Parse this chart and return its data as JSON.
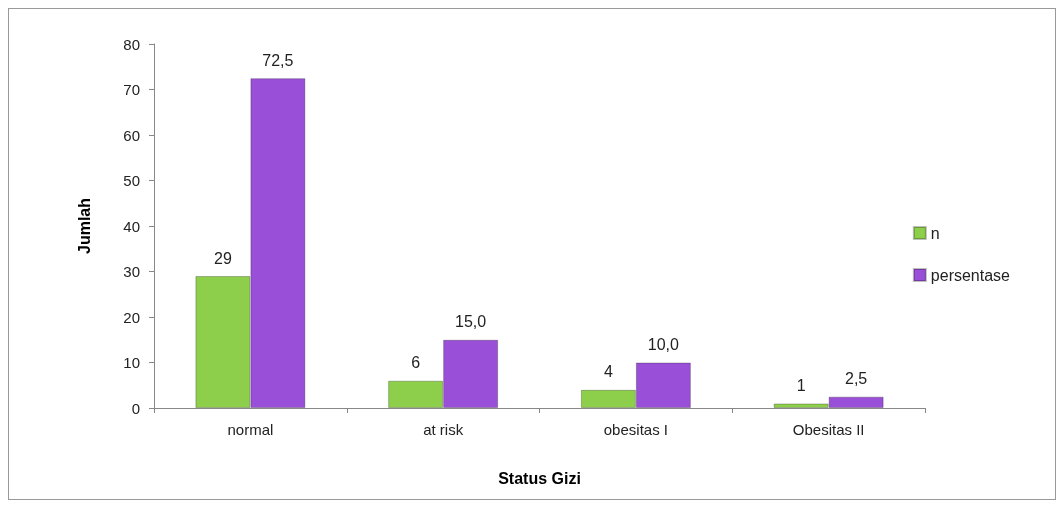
{
  "chart_data": {
    "type": "bar",
    "xlabel": "Status Gizi",
    "ylabel": "Jumlah",
    "categories": [
      "normal",
      "at risk",
      "obesitas I",
      "Obesitas II"
    ],
    "series": [
      {
        "name": "n",
        "color": "#8dcf4a",
        "values": [
          29,
          6,
          4,
          1
        ],
        "value_labels": [
          "29",
          "6",
          "4",
          "1"
        ]
      },
      {
        "name": "persentase",
        "color": "#9a4fd8",
        "values": [
          72.5,
          15,
          10,
          2.5
        ],
        "value_labels": [
          "72,5",
          "15,0",
          "10,0",
          "2,5"
        ]
      }
    ],
    "ylim": [
      0,
      80
    ],
    "yticks": [
      0,
      10,
      20,
      30,
      40,
      50,
      60,
      70,
      80
    ],
    "grid": false,
    "legend": "right"
  }
}
